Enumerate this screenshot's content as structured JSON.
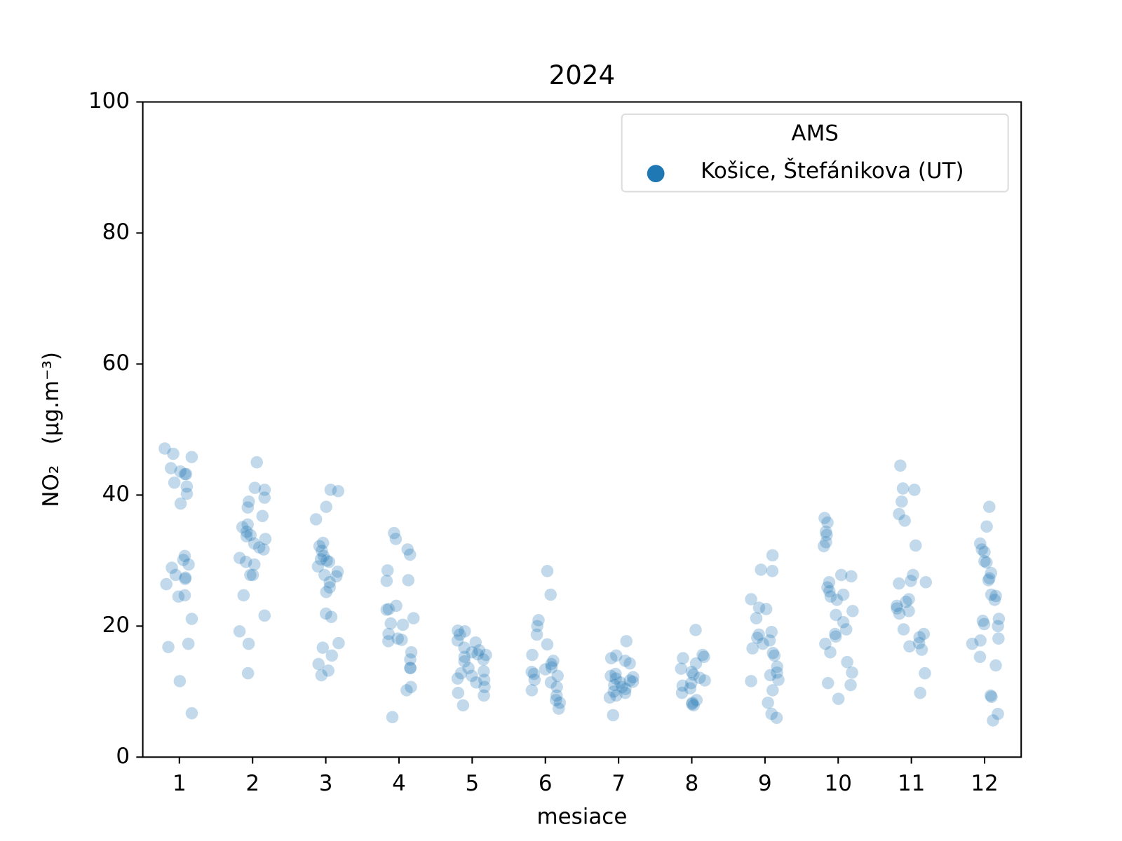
{
  "chart_data": {
    "type": "strip",
    "title": "2024",
    "xlabel": "mesiace",
    "ylabel": "NO₂   (μg.m⁻³)",
    "categories": [
      "1",
      "2",
      "3",
      "4",
      "5",
      "6",
      "7",
      "8",
      "9",
      "10",
      "11",
      "12"
    ],
    "ylim": [
      0,
      100
    ],
    "yticks": [
      0,
      20,
      40,
      60,
      80,
      100
    ],
    "legend_title": "AMS",
    "legend_position": "upper right",
    "series": [
      {
        "name": "Košice, Štefánikova (UT)",
        "color": "#1f77b4",
        "values": [
          [
            47.1,
            45.8,
            46.3,
            44.1,
            43.2,
            43.6,
            41.9,
            41.3,
            40.2,
            38.7,
            30.7,
            30.1,
            29.4,
            28.9,
            27.8,
            27.4,
            27.2,
            26.4,
            24.7,
            24.5,
            21.1,
            17.3,
            16.8,
            11.6,
            6.7,
            43.2
          ],
          [
            45.0,
            41.1,
            40.8,
            39.6,
            39.0,
            38.1,
            36.8,
            35.5,
            35.1,
            34.4,
            33.9,
            33.7,
            33.3,
            32.6,
            32.0,
            31.7,
            30.4,
            29.8,
            29.4,
            27.8,
            27.8,
            24.7,
            21.6,
            19.2,
            17.3,
            12.8
          ],
          [
            40.8,
            40.6,
            38.2,
            36.3,
            32.7,
            32.2,
            31.5,
            30.7,
            30.2,
            30.0,
            29.8,
            29.1,
            28.3,
            27.8,
            27.6,
            26.7,
            25.9,
            25.2,
            21.9,
            21.4,
            17.4,
            16.7,
            15.5,
            14.2,
            13.2,
            12.5
          ],
          [
            34.2,
            33.3,
            31.7,
            30.9,
            28.5,
            27.0,
            26.9,
            23.1,
            22.6,
            22.5,
            21.2,
            20.4,
            20.2,
            18.8,
            18.1,
            17.9,
            17.7,
            16.0,
            14.9,
            13.6,
            13.6,
            10.7,
            10.2,
            6.1
          ],
          [
            19.3,
            19.2,
            18.7,
            17.8,
            17.5,
            16.7,
            16.3,
            16.0,
            15.7,
            15.3,
            14.9,
            14.6,
            13.6,
            13.1,
            12.8,
            12.4,
            12.0,
            11.8,
            11.4,
            10.7,
            9.8,
            9.4,
            7.9,
            15.6
          ],
          [
            28.4,
            24.8,
            20.9,
            20.0,
            18.7,
            17.2,
            15.6,
            14.7,
            14.2,
            13.7,
            13.4,
            13.0,
            12.7,
            12.4,
            11.8,
            11.4,
            10.7,
            10.2,
            9.4,
            8.7,
            8.3,
            7.4
          ],
          [
            17.7,
            15.5,
            15.1,
            14.7,
            14.3,
            12.7,
            12.4,
            12.0,
            11.7,
            11.4,
            11.0,
            10.7,
            10.4,
            10.0,
            9.8,
            9.4,
            9.1,
            6.4,
            11.5,
            12.2
          ],
          [
            19.4,
            15.6,
            15.3,
            15.1,
            14.3,
            13.5,
            13.0,
            12.6,
            12.1,
            11.7,
            11.3,
            10.9,
            10.5,
            9.8,
            8.7,
            8.3,
            7.9,
            8.1
          ],
          [
            30.8,
            28.6,
            28.4,
            24.1,
            22.8,
            22.6,
            21.2,
            19.1,
            18.7,
            18.2,
            17.8,
            17.3,
            16.6,
            15.9,
            15.5,
            13.8,
            12.9,
            12.5,
            11.8,
            11.6,
            10.2,
            8.3,
            6.6,
            6.0
          ],
          [
            36.5,
            35.8,
            34.4,
            33.9,
            32.8,
            32.2,
            27.8,
            27.6,
            26.7,
            25.9,
            25.3,
            24.8,
            24.5,
            24.0,
            22.3,
            21.7,
            20.6,
            19.5,
            18.8,
            18.4,
            17.3,
            16.0,
            14.5,
            12.9,
            11.3,
            11.0,
            8.9
          ],
          [
            44.5,
            41.0,
            40.8,
            39.0,
            37.1,
            36.1,
            32.3,
            27.8,
            26.9,
            26.7,
            26.5,
            24.1,
            23.7,
            23.1,
            22.7,
            22.3,
            21.9,
            19.5,
            18.8,
            18.3,
            17.4,
            16.9,
            16.4,
            12.8,
            9.8
          ],
          [
            38.2,
            35.2,
            32.6,
            31.7,
            31.3,
            29.9,
            29.7,
            28.1,
            27.3,
            27.0,
            24.8,
            24.6,
            24.0,
            21.1,
            20.8,
            20.3,
            20.0,
            18.1,
            17.8,
            17.3,
            15.3,
            14.0,
            9.4,
            9.2,
            6.6,
            5.6
          ]
        ]
      }
    ]
  }
}
